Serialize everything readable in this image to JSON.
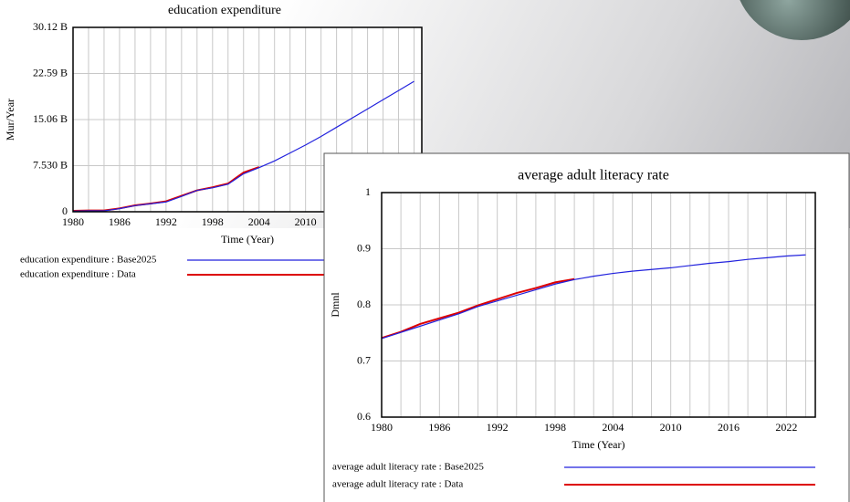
{
  "chart_data": [
    {
      "type": "line",
      "title": "education expenditure",
      "x_label": "Time (Year)",
      "y_label": "Mur/Year",
      "x": [
        1980,
        1982,
        1984,
        1986,
        1988,
        1990,
        1992,
        1994,
        1996,
        1998,
        2000,
        2002,
        2004,
        2006,
        2008,
        2010,
        2012,
        2014,
        2016,
        2018,
        2020,
        2022,
        2024
      ],
      "series": [
        {
          "name": "education expenditure : Base2025",
          "color": "#2222dd",
          "values": [
            0.1,
            0.15,
            0.15,
            0.5,
            1.0,
            1.3,
            1.6,
            2.5,
            3.5,
            3.9,
            4.5,
            6.2,
            7.2,
            8.3,
            9.6,
            10.9,
            12.3,
            13.8,
            15.3,
            16.8,
            18.3,
            19.8,
            21.3
          ]
        },
        {
          "name": "education expenditure : Data",
          "color": "#dd0000",
          "values": [
            0.15,
            0.2,
            0.2,
            0.55,
            1.05,
            1.35,
            1.7,
            2.6,
            3.5,
            4.0,
            4.6,
            6.4,
            7.3,
            null,
            null,
            null,
            null,
            null,
            null,
            null,
            null,
            null,
            null
          ]
        }
      ],
      "xlim": [
        1980,
        2025
      ],
      "xticks": [
        1980,
        1986,
        1992,
        1998,
        2004,
        2010
      ],
      "xgrid": [
        1980,
        1982,
        1984,
        1986,
        1988,
        1990,
        1992,
        1994,
        1996,
        1998,
        2000,
        2002,
        2004,
        2006,
        2008,
        2010,
        2012,
        2014,
        2016,
        2018,
        2020,
        2022,
        2024
      ],
      "ylim": [
        0,
        30.12
      ],
      "yticks": [
        0,
        {
          "value": 7.53,
          "label": "7.530 B"
        },
        {
          "value": 15.06,
          "label": "15.06 B"
        },
        {
          "value": 22.59,
          "label": "22.59 B"
        },
        {
          "value": 30.12,
          "label": "30.12 B"
        }
      ],
      "grid": true
    },
    {
      "type": "line",
      "title": "average adult literacy rate",
      "x_label": "Time (Year)",
      "y_label": "Dmnl",
      "x": [
        1980,
        1982,
        1984,
        1986,
        1988,
        1990,
        1992,
        1994,
        1996,
        1998,
        2000,
        2002,
        2004,
        2006,
        2008,
        2010,
        2012,
        2014,
        2016,
        2018,
        2020,
        2022,
        2024
      ],
      "series": [
        {
          "name": "average adult literacy rate : Base2025",
          "color": "#2222dd",
          "values": [
            0.74,
            0.751,
            0.762,
            0.773,
            0.784,
            0.797,
            0.807,
            0.817,
            0.827,
            0.837,
            0.845,
            0.851,
            0.856,
            0.86,
            0.863,
            0.866,
            0.87,
            0.874,
            0.877,
            0.881,
            0.884,
            0.887,
            0.889
          ]
        },
        {
          "name": "average adult literacy rate : Data",
          "color": "#dd0000",
          "values": [
            0.741,
            0.752,
            0.766,
            0.776,
            0.786,
            0.799,
            0.81,
            0.821,
            0.83,
            0.84,
            0.846,
            null,
            null,
            null,
            null,
            null,
            null,
            null,
            null,
            null,
            null,
            null,
            null
          ]
        }
      ],
      "xlim": [
        1980,
        2025
      ],
      "xticks": [
        1980,
        1986,
        1992,
        1998,
        2004,
        2010,
        2016,
        2022
      ],
      "xgrid": [
        1980,
        1982,
        1984,
        1986,
        1988,
        1990,
        1992,
        1994,
        1996,
        1998,
        2000,
        2002,
        2004,
        2006,
        2008,
        2010,
        2012,
        2014,
        2016,
        2018,
        2020,
        2022,
        2024
      ],
      "ylim": [
        0.6,
        1
      ],
      "yticks": [
        0.6,
        0.7,
        0.8,
        0.9,
        1
      ],
      "grid": true
    }
  ]
}
